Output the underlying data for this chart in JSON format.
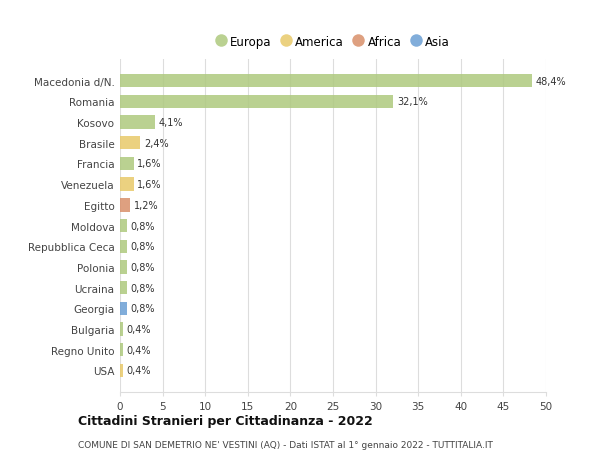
{
  "categories": [
    "Macedonia d/N.",
    "Romania",
    "Kosovo",
    "Brasile",
    "Francia",
    "Venezuela",
    "Egitto",
    "Moldova",
    "Repubblica Ceca",
    "Polonia",
    "Ucraina",
    "Georgia",
    "Bulgaria",
    "Regno Unito",
    "USA"
  ],
  "values": [
    48.4,
    32.1,
    4.1,
    2.4,
    1.6,
    1.6,
    1.2,
    0.8,
    0.8,
    0.8,
    0.8,
    0.8,
    0.4,
    0.4,
    0.4
  ],
  "labels": [
    "48,4%",
    "32,1%",
    "4,1%",
    "2,4%",
    "1,6%",
    "1,6%",
    "1,2%",
    "0,8%",
    "0,8%",
    "0,8%",
    "0,8%",
    "0,8%",
    "0,4%",
    "0,4%",
    "0,4%"
  ],
  "colors": [
    "#aec97e",
    "#aec97e",
    "#aec97e",
    "#e8c96a",
    "#aec97e",
    "#e8c96a",
    "#d9906a",
    "#aec97e",
    "#aec97e",
    "#aec97e",
    "#aec97e",
    "#6b9fd4",
    "#aec97e",
    "#aec97e",
    "#e8c96a"
  ],
  "legend_labels": [
    "Europa",
    "America",
    "Africa",
    "Asia"
  ],
  "legend_colors": [
    "#aec97e",
    "#e8c96a",
    "#d9906a",
    "#6b9fd4"
  ],
  "xlim": [
    0,
    50
  ],
  "xticks": [
    0,
    5,
    10,
    15,
    20,
    25,
    30,
    35,
    40,
    45,
    50
  ],
  "title": "Cittadini Stranieri per Cittadinanza - 2022",
  "subtitle": "COMUNE DI SAN DEMETRIO NE' VESTINI (AQ) - Dati ISTAT al 1° gennaio 2022 - TUTTITALIA.IT",
  "background_color": "#ffffff",
  "grid_color": "#dddddd",
  "bar_height": 0.65
}
